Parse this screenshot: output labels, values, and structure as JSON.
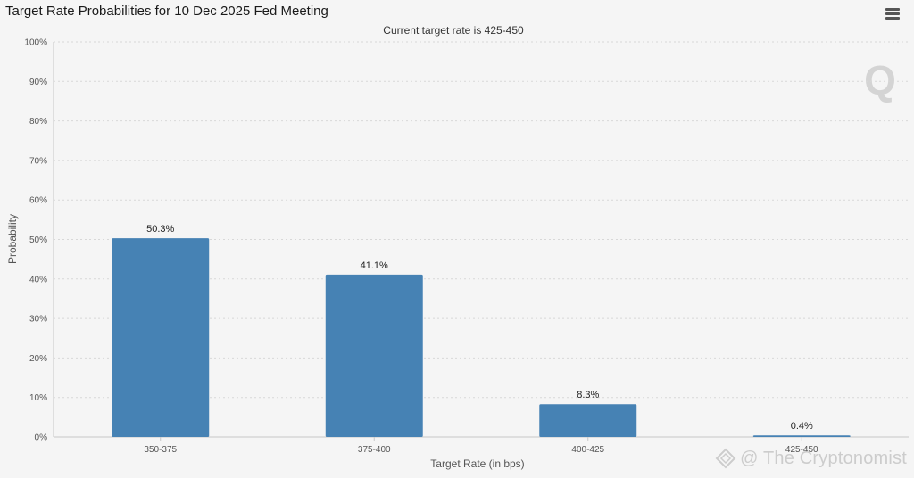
{
  "page": {
    "title": "Target Rate Probabilities for 10 Dec 2025 Fed Meeting",
    "watermark": "@ The Cryptonomist"
  },
  "icons": {
    "menu": "hamburger-menu-icon",
    "logo": "q-logo-icon"
  },
  "colors": {
    "bar": "#4682b4",
    "grid": "#d8d8d8",
    "background": "#f5f5f5"
  },
  "chart_data": {
    "type": "bar",
    "title": "Target Rate Probabilities for 10 Dec 2025 Fed Meeting",
    "subtitle": "Current target rate is 425-450",
    "xlabel": "Target Rate (in bps)",
    "ylabel": "Probability",
    "categories": [
      "350-375",
      "375-400",
      "400-425",
      "425-450"
    ],
    "values": [
      50.3,
      41.1,
      8.3,
      0.4
    ],
    "data_labels": [
      "50.3%",
      "41.1%",
      "8.3%",
      "0.4%"
    ],
    "ylim": [
      0,
      100
    ],
    "yticks": [
      "0%",
      "10%",
      "20%",
      "30%",
      "40%",
      "50%",
      "60%",
      "70%",
      "80%",
      "90%",
      "100%"
    ],
    "grid": true,
    "legend": "none"
  }
}
